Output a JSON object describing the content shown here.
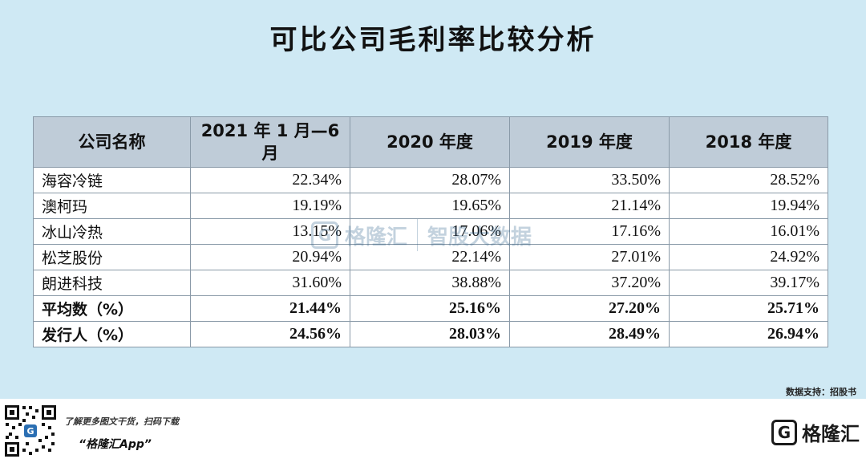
{
  "title": "可比公司毛利率比较分析",
  "table": {
    "headers": [
      "公司名称",
      "2021 年 1 月—6 月",
      "2020 年度",
      "2019 年度",
      "2018 年度"
    ],
    "rows": [
      {
        "name": "海容冷链",
        "values": [
          "22.34%",
          "28.07%",
          "33.50%",
          "28.52%"
        ]
      },
      {
        "name": "澳柯玛",
        "values": [
          "19.19%",
          "19.65%",
          "21.14%",
          "19.94%"
        ]
      },
      {
        "name": "冰山冷热",
        "values": [
          "13.15%",
          "17.06%",
          "17.16%",
          "16.01%"
        ]
      },
      {
        "name": "松芝股份",
        "values": [
          "20.94%",
          "22.14%",
          "27.01%",
          "24.92%"
        ]
      },
      {
        "name": "朗进科技",
        "values": [
          "31.60%",
          "38.88%",
          "37.20%",
          "39.17%"
        ]
      },
      {
        "name": "平均数（%）",
        "values": [
          "21.44%",
          "25.16%",
          "27.20%",
          "25.71%"
        ]
      },
      {
        "name": "发行人（%）",
        "values": [
          "24.56%",
          "28.03%",
          "28.49%",
          "26.94%"
        ]
      }
    ]
  },
  "watermark": {
    "logo_letter": "G",
    "name": "格隆汇",
    "tagline": "智股大数据"
  },
  "source": "数据支持：招股书",
  "footer": {
    "promo_line1": "了解更多图文干货，扫码下载",
    "promo_line2": "“格隆汇App”",
    "brand_letter": "G",
    "brand_name": "格隆汇"
  },
  "icons": {
    "qr": "qr-code-icon",
    "logo": "gelonghui-logo-icon"
  },
  "colors": {
    "background": "#cfe9f4",
    "header_fill": "#bfccd8",
    "accent": "#2b6fb3"
  }
}
